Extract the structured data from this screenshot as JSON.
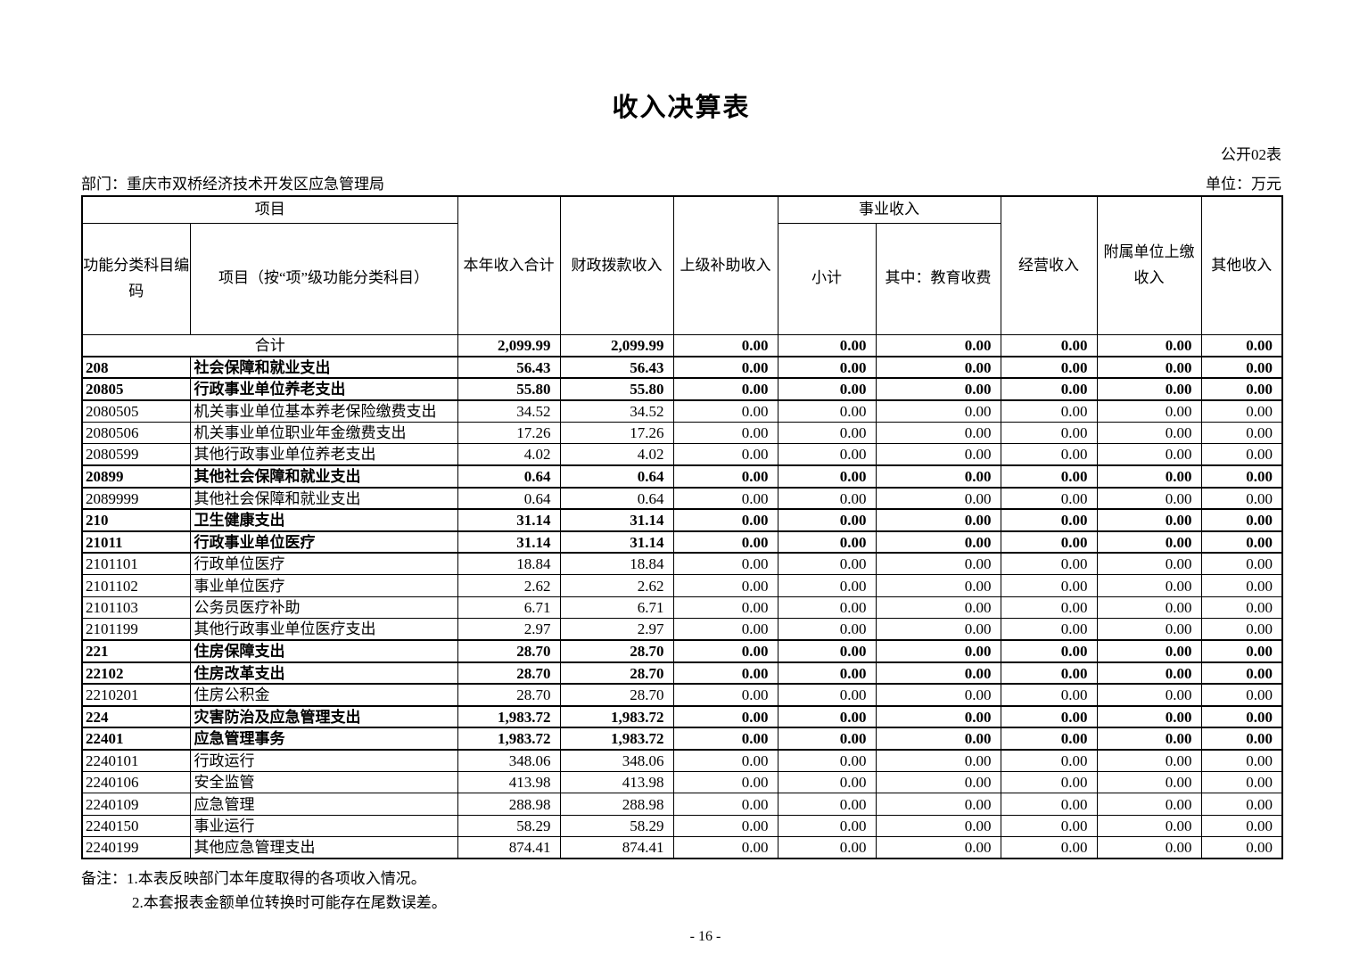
{
  "page": {
    "title": "收入决算表",
    "table_code": "公开02表",
    "department": "部门：重庆市双桥经济技术开发区应急管理局",
    "unit": "单位：万元",
    "note1": "备注：1.本表反映部门本年度取得的各项收入情况。",
    "note2": "2.本套报表金额单位转换时可能存在尾数误差。",
    "page_number": "- 16 -"
  },
  "table": {
    "header": {
      "project_group": "项目",
      "code": "功能分类科目编码",
      "item": "项目（按“项”级功能分类科目）",
      "annual_total": "本年收入合计",
      "fiscal_appropriation": "财政拨款收入",
      "superior_subsidy": "上级补助收入",
      "business_income_group": "事业收入",
      "subtotal": "小计",
      "education_fee": "其中：教育收费",
      "operating_income": "经营收入",
      "affiliated_income": "附属单位上缴收入",
      "other_income": "其他收入"
    },
    "rows": [
      {
        "code": "",
        "name": "合计",
        "total": true,
        "values": [
          "2,099.99",
          "2,099.99",
          "0.00",
          "0.00",
          "0.00",
          "0.00",
          "0.00",
          "0.00"
        ]
      },
      {
        "code": "208",
        "name": "社会保障和就业支出",
        "bold": true,
        "values": [
          "56.43",
          "56.43",
          "0.00",
          "0.00",
          "0.00",
          "0.00",
          "0.00",
          "0.00"
        ]
      },
      {
        "code": "20805",
        "name": "行政事业单位养老支出",
        "bold": true,
        "values": [
          "55.80",
          "55.80",
          "0.00",
          "0.00",
          "0.00",
          "0.00",
          "0.00",
          "0.00"
        ]
      },
      {
        "code": "2080505",
        "name": "机关事业单位基本养老保险缴费支出",
        "bold": false,
        "values": [
          "34.52",
          "34.52",
          "0.00",
          "0.00",
          "0.00",
          "0.00",
          "0.00",
          "0.00"
        ]
      },
      {
        "code": "2080506",
        "name": "机关事业单位职业年金缴费支出",
        "bold": false,
        "values": [
          "17.26",
          "17.26",
          "0.00",
          "0.00",
          "0.00",
          "0.00",
          "0.00",
          "0.00"
        ]
      },
      {
        "code": "2080599",
        "name": "其他行政事业单位养老支出",
        "bold": false,
        "values": [
          "4.02",
          "4.02",
          "0.00",
          "0.00",
          "0.00",
          "0.00",
          "0.00",
          "0.00"
        ]
      },
      {
        "code": "20899",
        "name": "其他社会保障和就业支出",
        "bold": true,
        "values": [
          "0.64",
          "0.64",
          "0.00",
          "0.00",
          "0.00",
          "0.00",
          "0.00",
          "0.00"
        ]
      },
      {
        "code": "2089999",
        "name": "其他社会保障和就业支出",
        "bold": false,
        "values": [
          "0.64",
          "0.64",
          "0.00",
          "0.00",
          "0.00",
          "0.00",
          "0.00",
          "0.00"
        ]
      },
      {
        "code": "210",
        "name": "卫生健康支出",
        "bold": true,
        "values": [
          "31.14",
          "31.14",
          "0.00",
          "0.00",
          "0.00",
          "0.00",
          "0.00",
          "0.00"
        ]
      },
      {
        "code": "21011",
        "name": "行政事业单位医疗",
        "bold": true,
        "values": [
          "31.14",
          "31.14",
          "0.00",
          "0.00",
          "0.00",
          "0.00",
          "0.00",
          "0.00"
        ]
      },
      {
        "code": "2101101",
        "name": "行政单位医疗",
        "bold": false,
        "values": [
          "18.84",
          "18.84",
          "0.00",
          "0.00",
          "0.00",
          "0.00",
          "0.00",
          "0.00"
        ]
      },
      {
        "code": "2101102",
        "name": "事业单位医疗",
        "bold": false,
        "values": [
          "2.62",
          "2.62",
          "0.00",
          "0.00",
          "0.00",
          "0.00",
          "0.00",
          "0.00"
        ]
      },
      {
        "code": "2101103",
        "name": "公务员医疗补助",
        "bold": false,
        "values": [
          "6.71",
          "6.71",
          "0.00",
          "0.00",
          "0.00",
          "0.00",
          "0.00",
          "0.00"
        ]
      },
      {
        "code": "2101199",
        "name": "其他行政事业单位医疗支出",
        "bold": false,
        "values": [
          "2.97",
          "2.97",
          "0.00",
          "0.00",
          "0.00",
          "0.00",
          "0.00",
          "0.00"
        ]
      },
      {
        "code": "221",
        "name": "住房保障支出",
        "bold": true,
        "values": [
          "28.70",
          "28.70",
          "0.00",
          "0.00",
          "0.00",
          "0.00",
          "0.00",
          "0.00"
        ]
      },
      {
        "code": "22102",
        "name": "住房改革支出",
        "bold": true,
        "values": [
          "28.70",
          "28.70",
          "0.00",
          "0.00",
          "0.00",
          "0.00",
          "0.00",
          "0.00"
        ]
      },
      {
        "code": "2210201",
        "name": "住房公积金",
        "bold": false,
        "values": [
          "28.70",
          "28.70",
          "0.00",
          "0.00",
          "0.00",
          "0.00",
          "0.00",
          "0.00"
        ]
      },
      {
        "code": "224",
        "name": "灾害防治及应急管理支出",
        "bold": true,
        "values": [
          "1,983.72",
          "1,983.72",
          "0.00",
          "0.00",
          "0.00",
          "0.00",
          "0.00",
          "0.00"
        ]
      },
      {
        "code": "22401",
        "name": "应急管理事务",
        "bold": true,
        "values": [
          "1,983.72",
          "1,983.72",
          "0.00",
          "0.00",
          "0.00",
          "0.00",
          "0.00",
          "0.00"
        ]
      },
      {
        "code": "2240101",
        "name": "行政运行",
        "bold": false,
        "values": [
          "348.06",
          "348.06",
          "0.00",
          "0.00",
          "0.00",
          "0.00",
          "0.00",
          "0.00"
        ]
      },
      {
        "code": "2240106",
        "name": "安全监管",
        "bold": false,
        "values": [
          "413.98",
          "413.98",
          "0.00",
          "0.00",
          "0.00",
          "0.00",
          "0.00",
          "0.00"
        ]
      },
      {
        "code": "2240109",
        "name": "应急管理",
        "bold": false,
        "values": [
          "288.98",
          "288.98",
          "0.00",
          "0.00",
          "0.00",
          "0.00",
          "0.00",
          "0.00"
        ]
      },
      {
        "code": "2240150",
        "name": "事业运行",
        "bold": false,
        "values": [
          "58.29",
          "58.29",
          "0.00",
          "0.00",
          "0.00",
          "0.00",
          "0.00",
          "0.00"
        ]
      },
      {
        "code": "2240199",
        "name": "其他应急管理支出",
        "bold": false,
        "values": [
          "874.41",
          "874.41",
          "0.00",
          "0.00",
          "0.00",
          "0.00",
          "0.00",
          "0.00"
        ]
      }
    ]
  }
}
